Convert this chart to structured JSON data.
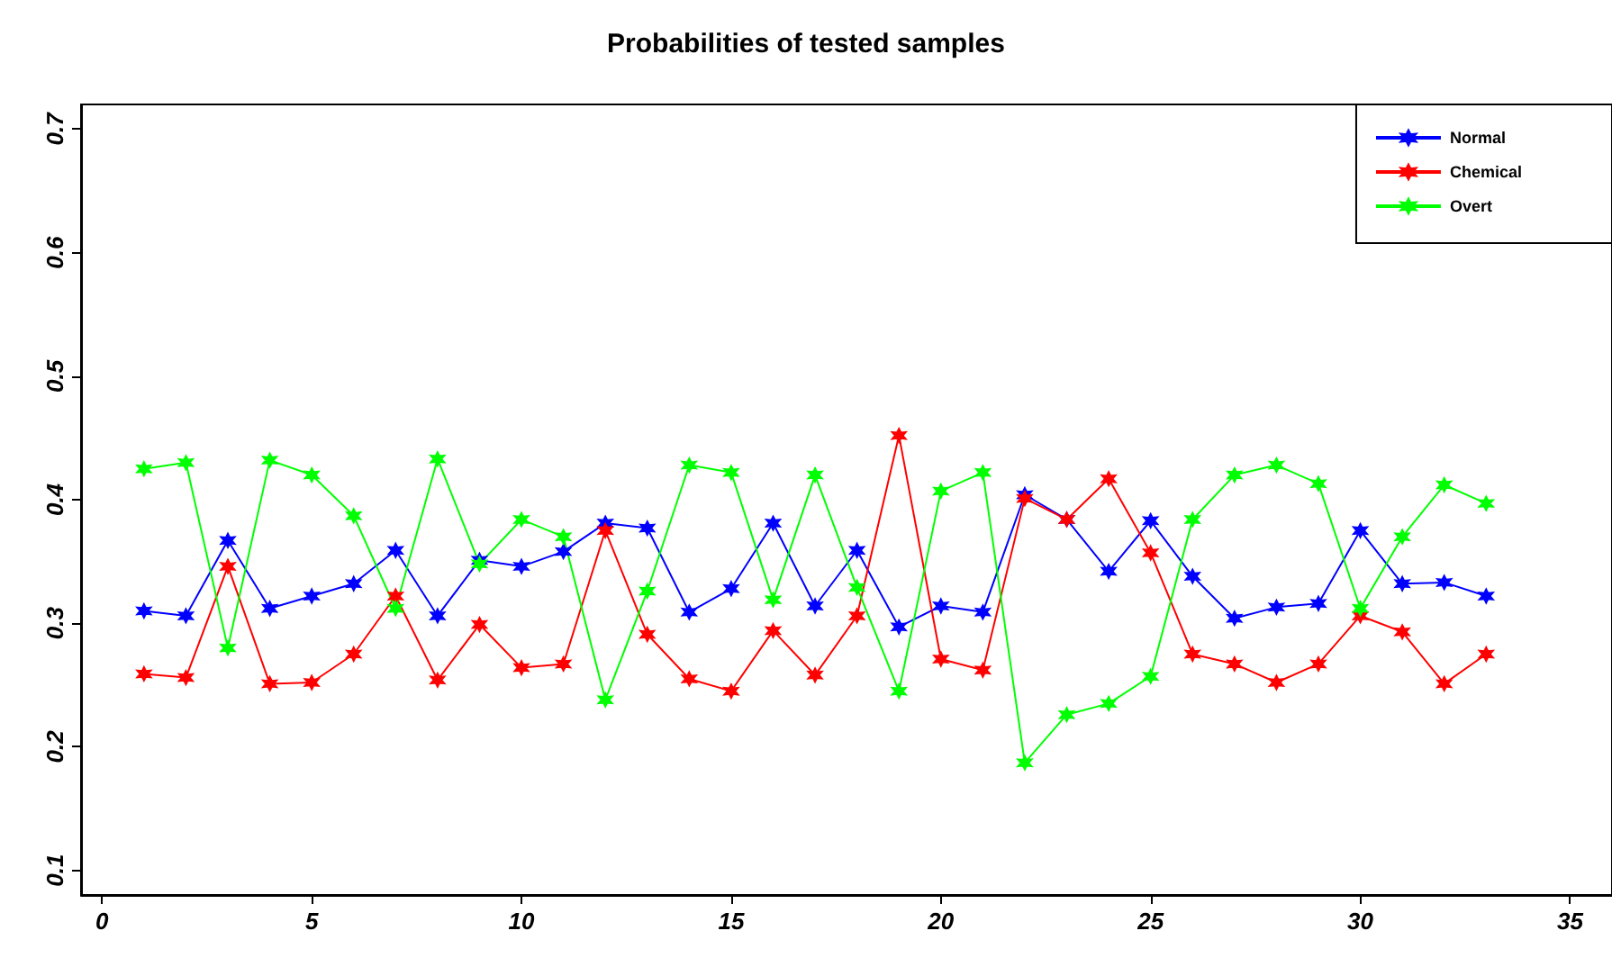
{
  "chart_data": {
    "type": "line",
    "title": "Probabilities of tested samples",
    "x": [
      1,
      2,
      3,
      4,
      5,
      6,
      7,
      8,
      9,
      10,
      11,
      12,
      13,
      14,
      15,
      16,
      17,
      18,
      19,
      20,
      21,
      22,
      23,
      24,
      25,
      26,
      27,
      28,
      29,
      30,
      31,
      32,
      33
    ],
    "series": [
      {
        "name": "Normal",
        "color": "#0000ff",
        "values": [
          0.31,
          0.306,
          0.367,
          0.312,
          0.322,
          0.332,
          0.359,
          0.306,
          0.351,
          0.346,
          0.358,
          0.381,
          0.377,
          0.309,
          0.328,
          0.381,
          0.314,
          0.359,
          0.297,
          0.314,
          0.309,
          0.404,
          0.384,
          0.342,
          0.383,
          0.338,
          0.304,
          0.313,
          0.316,
          0.375,
          0.332,
          0.333,
          0.322
        ]
      },
      {
        "name": "Chemical",
        "color": "#ff0000",
        "values": [
          0.259,
          0.256,
          0.346,
          0.251,
          0.252,
          0.275,
          0.322,
          0.254,
          0.299,
          0.264,
          0.267,
          0.375,
          0.291,
          0.255,
          0.245,
          0.294,
          0.258,
          0.306,
          0.452,
          0.271,
          0.262,
          0.401,
          0.384,
          0.417,
          0.357,
          0.275,
          0.267,
          0.252,
          0.267,
          0.306,
          0.293,
          0.251,
          0.275
        ]
      },
      {
        "name": "Overt",
        "color": "#00ff00",
        "values": [
          0.425,
          0.43,
          0.28,
          0.432,
          0.42,
          0.387,
          0.312,
          0.433,
          0.348,
          0.384,
          0.37,
          0.238,
          0.326,
          0.428,
          0.422,
          0.319,
          0.42,
          0.329,
          0.245,
          0.407,
          0.422,
          0.187,
          0.226,
          0.235,
          0.257,
          0.384,
          0.42,
          0.428,
          0.413,
          0.312,
          0.37,
          0.412,
          0.397
        ]
      }
    ],
    "xlim": [
      -0.5,
      36
    ],
    "xticks": [
      0,
      5,
      10,
      15,
      20,
      25,
      30,
      35
    ],
    "ylim": [
      0.08,
      0.72
    ],
    "yticks": [
      0.1,
      0.2,
      0.3,
      0.4,
      0.5,
      0.6,
      0.7
    ],
    "grid": false,
    "legend": "top right",
    "marker": "cross",
    "line_style": "solid"
  }
}
